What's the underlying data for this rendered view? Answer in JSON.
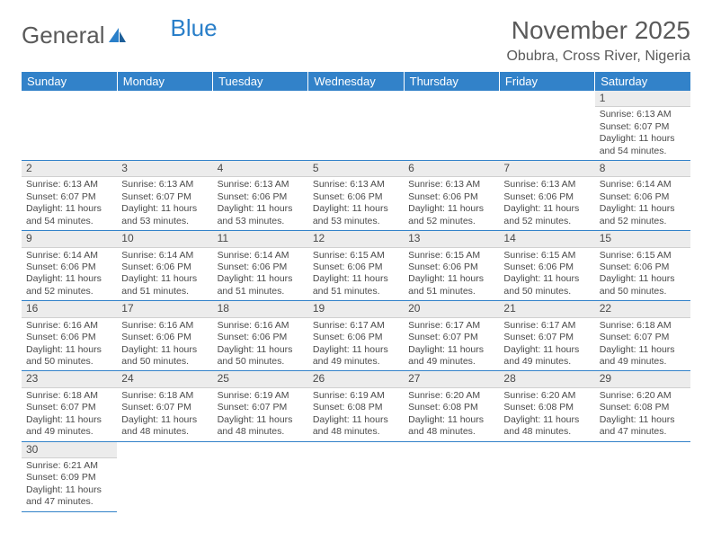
{
  "logo": {
    "text1": "General",
    "text2": "Blue"
  },
  "title": "November 2025",
  "location": "Obubra, Cross River, Nigeria",
  "colors": {
    "header_bg": "#3282c9",
    "header_text": "#ffffff",
    "daynum_bg": "#ececec",
    "border": "#3282c9",
    "text": "#4a4a4a",
    "logo_blue": "#2a7fc9"
  },
  "daysOfWeek": [
    "Sunday",
    "Monday",
    "Tuesday",
    "Wednesday",
    "Thursday",
    "Friday",
    "Saturday"
  ],
  "weeks": [
    [
      null,
      null,
      null,
      null,
      null,
      null,
      {
        "n": "1",
        "sr": "6:13 AM",
        "ss": "6:07 PM",
        "dl": "11 hours and 54 minutes."
      }
    ],
    [
      {
        "n": "2",
        "sr": "6:13 AM",
        "ss": "6:07 PM",
        "dl": "11 hours and 54 minutes."
      },
      {
        "n": "3",
        "sr": "6:13 AM",
        "ss": "6:07 PM",
        "dl": "11 hours and 53 minutes."
      },
      {
        "n": "4",
        "sr": "6:13 AM",
        "ss": "6:06 PM",
        "dl": "11 hours and 53 minutes."
      },
      {
        "n": "5",
        "sr": "6:13 AM",
        "ss": "6:06 PM",
        "dl": "11 hours and 53 minutes."
      },
      {
        "n": "6",
        "sr": "6:13 AM",
        "ss": "6:06 PM",
        "dl": "11 hours and 52 minutes."
      },
      {
        "n": "7",
        "sr": "6:13 AM",
        "ss": "6:06 PM",
        "dl": "11 hours and 52 minutes."
      },
      {
        "n": "8",
        "sr": "6:14 AM",
        "ss": "6:06 PM",
        "dl": "11 hours and 52 minutes."
      }
    ],
    [
      {
        "n": "9",
        "sr": "6:14 AM",
        "ss": "6:06 PM",
        "dl": "11 hours and 52 minutes."
      },
      {
        "n": "10",
        "sr": "6:14 AM",
        "ss": "6:06 PM",
        "dl": "11 hours and 51 minutes."
      },
      {
        "n": "11",
        "sr": "6:14 AM",
        "ss": "6:06 PM",
        "dl": "11 hours and 51 minutes."
      },
      {
        "n": "12",
        "sr": "6:15 AM",
        "ss": "6:06 PM",
        "dl": "11 hours and 51 minutes."
      },
      {
        "n": "13",
        "sr": "6:15 AM",
        "ss": "6:06 PM",
        "dl": "11 hours and 51 minutes."
      },
      {
        "n": "14",
        "sr": "6:15 AM",
        "ss": "6:06 PM",
        "dl": "11 hours and 50 minutes."
      },
      {
        "n": "15",
        "sr": "6:15 AM",
        "ss": "6:06 PM",
        "dl": "11 hours and 50 minutes."
      }
    ],
    [
      {
        "n": "16",
        "sr": "6:16 AM",
        "ss": "6:06 PM",
        "dl": "11 hours and 50 minutes."
      },
      {
        "n": "17",
        "sr": "6:16 AM",
        "ss": "6:06 PM",
        "dl": "11 hours and 50 minutes."
      },
      {
        "n": "18",
        "sr": "6:16 AM",
        "ss": "6:06 PM",
        "dl": "11 hours and 50 minutes."
      },
      {
        "n": "19",
        "sr": "6:17 AM",
        "ss": "6:06 PM",
        "dl": "11 hours and 49 minutes."
      },
      {
        "n": "20",
        "sr": "6:17 AM",
        "ss": "6:07 PM",
        "dl": "11 hours and 49 minutes."
      },
      {
        "n": "21",
        "sr": "6:17 AM",
        "ss": "6:07 PM",
        "dl": "11 hours and 49 minutes."
      },
      {
        "n": "22",
        "sr": "6:18 AM",
        "ss": "6:07 PM",
        "dl": "11 hours and 49 minutes."
      }
    ],
    [
      {
        "n": "23",
        "sr": "6:18 AM",
        "ss": "6:07 PM",
        "dl": "11 hours and 49 minutes."
      },
      {
        "n": "24",
        "sr": "6:18 AM",
        "ss": "6:07 PM",
        "dl": "11 hours and 48 minutes."
      },
      {
        "n": "25",
        "sr": "6:19 AM",
        "ss": "6:07 PM",
        "dl": "11 hours and 48 minutes."
      },
      {
        "n": "26",
        "sr": "6:19 AM",
        "ss": "6:08 PM",
        "dl": "11 hours and 48 minutes."
      },
      {
        "n": "27",
        "sr": "6:20 AM",
        "ss": "6:08 PM",
        "dl": "11 hours and 48 minutes."
      },
      {
        "n": "28",
        "sr": "6:20 AM",
        "ss": "6:08 PM",
        "dl": "11 hours and 48 minutes."
      },
      {
        "n": "29",
        "sr": "6:20 AM",
        "ss": "6:08 PM",
        "dl": "11 hours and 47 minutes."
      }
    ],
    [
      {
        "n": "30",
        "sr": "6:21 AM",
        "ss": "6:09 PM",
        "dl": "11 hours and 47 minutes."
      },
      null,
      null,
      null,
      null,
      null,
      null
    ]
  ],
  "labels": {
    "sunrise": "Sunrise:",
    "sunset": "Sunset:",
    "daylight": "Daylight:"
  }
}
